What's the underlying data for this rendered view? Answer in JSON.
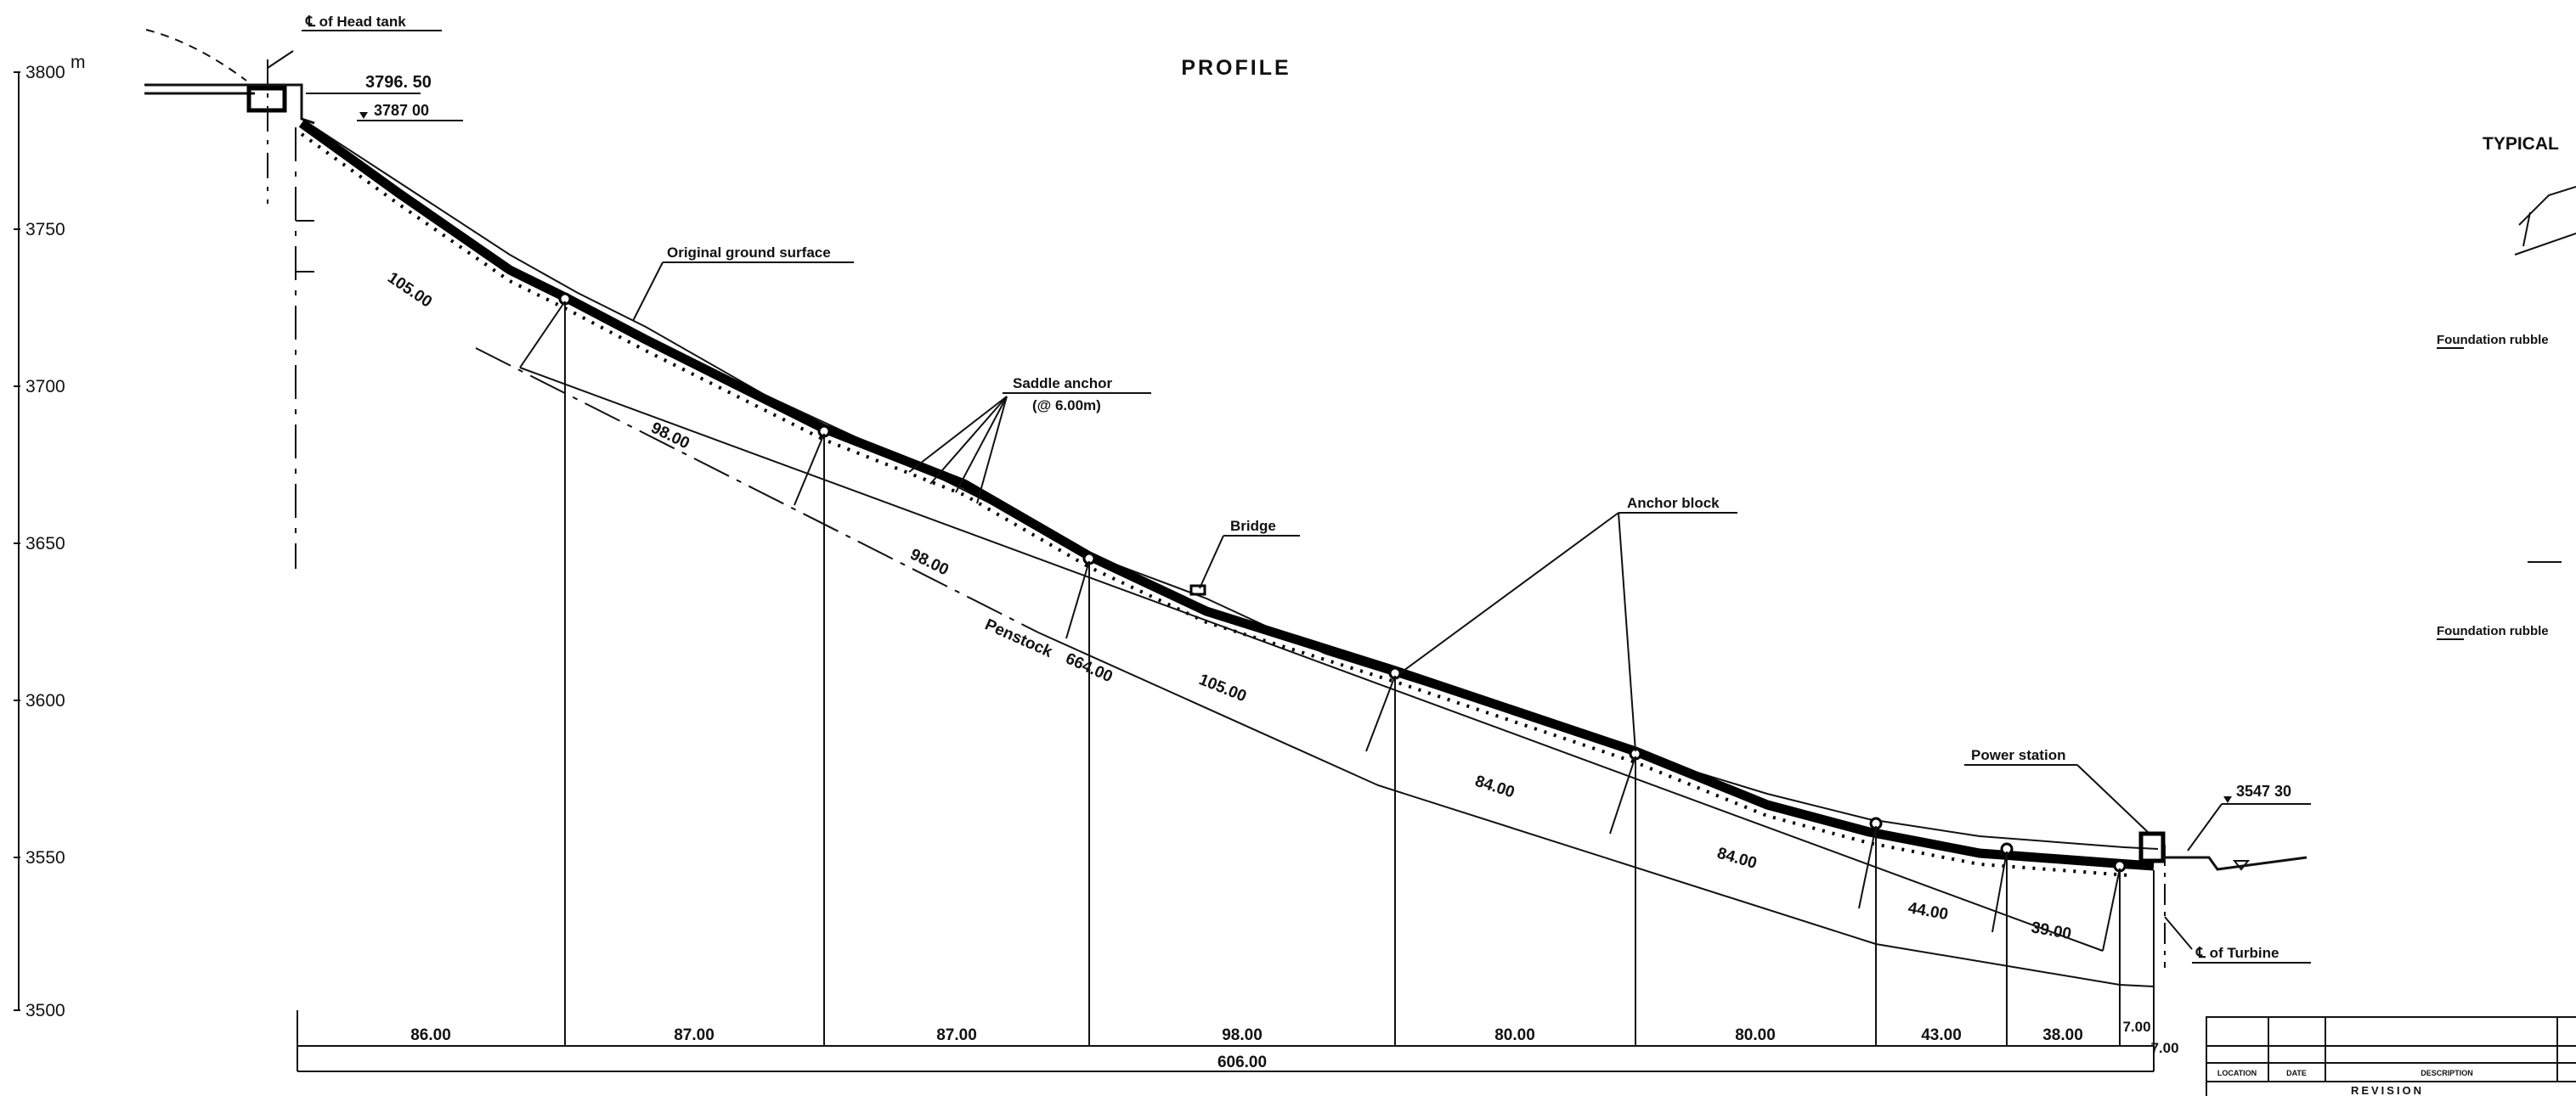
{
  "title": "PROFILE",
  "elevation_axis": {
    "unit": "m",
    "ticks": [
      "3800",
      "3750",
      "3700",
      "3650",
      "3600",
      "3550",
      "3500"
    ]
  },
  "labels": {
    "head_tank": "℄ of Head tank",
    "head_tank_level": "3796. 50",
    "head_tank_water": "3787 00",
    "original_ground": "Original ground surface",
    "saddle_anchor": "Saddle anchor",
    "saddle_spacing": "(@ 6.00m)",
    "bridge": "Bridge",
    "anchor_block": "Anchor block",
    "power_station": "Power station",
    "tailwater_level": "3547 30",
    "turbine": "℄ of Turbine",
    "penstock": "Penstock",
    "penstock_length": "664.00",
    "typical": "TYPICAL",
    "foundation_rubble_1": "Foundation rubble",
    "foundation_rubble_2": "Foundation rubble"
  },
  "slope_lengths": [
    "105.00",
    "98.00",
    "98.00",
    "105.00",
    "84.00",
    "84.00",
    "44.00",
    "39.00"
  ],
  "horizontal_dims": [
    "86.00",
    "87.00",
    "87.00",
    "98.00",
    "80.00",
    "80.00",
    "43.00",
    "38.00",
    "7.00"
  ],
  "horizontal_extra": "7.00",
  "total_horizontal": "606.00",
  "revision_table": {
    "headers": [
      "LOCATION",
      "DATE",
      "DESCRIPTION"
    ],
    "title": "REVISION"
  }
}
